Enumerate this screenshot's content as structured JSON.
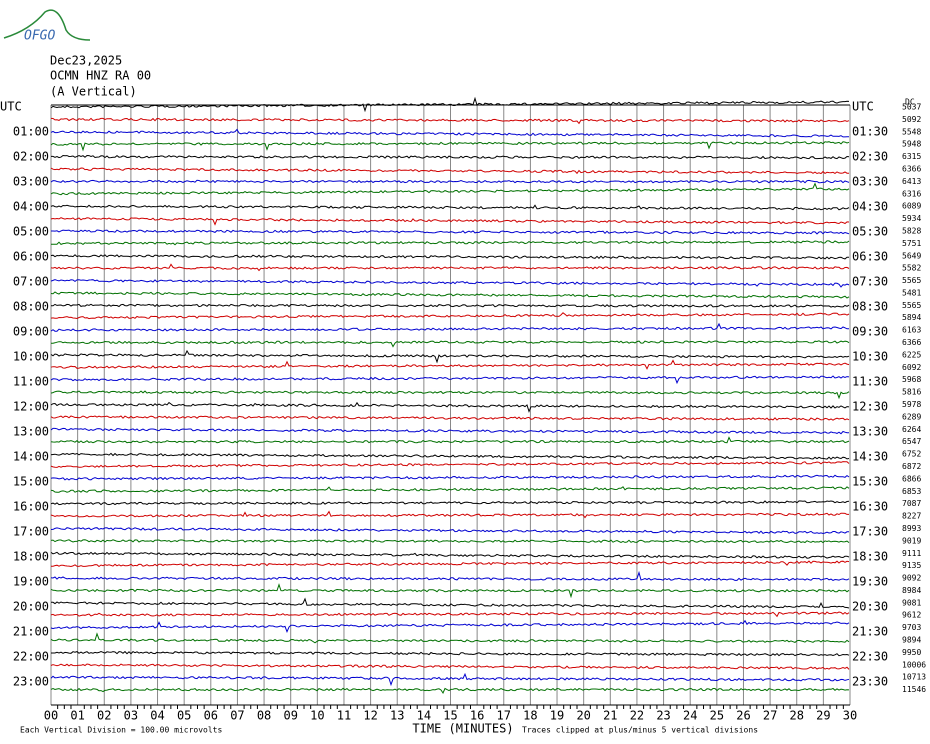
{
  "logo": "OFGO",
  "header": {
    "date": "Dec23,2025",
    "station": "OCMN HNZ RA 00",
    "component": "(A Vertical)"
  },
  "left_labels": [
    "UTC",
    "01:00",
    "02:00",
    "03:00",
    "04:00",
    "05:00",
    "06:00",
    "07:00",
    "08:00",
    "09:00",
    "10:00",
    "11:00",
    "12:00",
    "13:00",
    "14:00",
    "15:00",
    "16:00",
    "17:00",
    "18:00",
    "19:00",
    "20:00",
    "21:00",
    "22:00",
    "23:00"
  ],
  "right_labels": [
    "UTC",
    "01:30",
    "02:30",
    "03:30",
    "04:30",
    "05:30",
    "06:30",
    "07:30",
    "08:30",
    "09:30",
    "10:30",
    "11:30",
    "12:30",
    "13:30",
    "14:30",
    "15:30",
    "16:30",
    "17:30",
    "18:30",
    "19:30",
    "20:30",
    "21:30",
    "22:30",
    "23:30"
  ],
  "dc_label": "DC",
  "dc_values": [
    5037,
    5092,
    5548,
    5948,
    6315,
    6366,
    6413,
    6316,
    6089,
    5934,
    5828,
    5751,
    5649,
    5582,
    5565,
    5481,
    5565,
    5894,
    6163,
    6366,
    6225,
    6092,
    5968,
    5816,
    5978,
    6289,
    6264,
    6547,
    6752,
    6872,
    6866,
    6853,
    7087,
    8227,
    8993,
    9019,
    9111,
    9135,
    9092,
    8984,
    9081,
    9612,
    9703,
    9894,
    9950,
    10006,
    10713,
    11546
  ],
  "x_labels": [
    "00",
    "01",
    "02",
    "03",
    "04",
    "05",
    "06",
    "07",
    "08",
    "09",
    "10",
    "11",
    "12",
    "13",
    "14",
    "15",
    "16",
    "17",
    "18",
    "19",
    "20",
    "21",
    "22",
    "23",
    "24",
    "25",
    "26",
    "27",
    "28",
    "29",
    "30"
  ],
  "x_title": "TIME (MINUTES)",
  "footer": {
    "scale": "Each Vertical Division =  100.00 microvolts",
    "clip": "Traces clipped at plus/minus 5 vertical divisions"
  },
  "trace_colors": [
    "#000000",
    "#d00000",
    "#0000d0",
    "#007000"
  ]
}
